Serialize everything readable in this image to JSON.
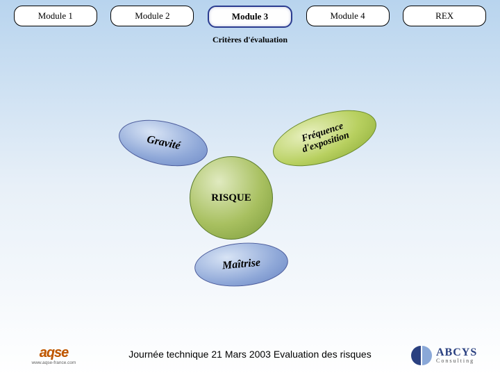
{
  "tabs": {
    "items": [
      {
        "label": "Module 1",
        "active": false
      },
      {
        "label": "Module 2",
        "active": false
      },
      {
        "label": "Module 3",
        "active": true
      },
      {
        "label": "Module 4",
        "active": false
      },
      {
        "label": "REX",
        "active": false
      }
    ]
  },
  "subtitle": "Critères d'évaluation",
  "diagram": {
    "gravite": {
      "label": "Gravité",
      "fill": "#8fa8d8",
      "border": "#4a5a9a",
      "rotation_deg": 12,
      "fontsize": 16
    },
    "freq": {
      "label": "Fréquence\nd'exposition",
      "fill": "#b8d060",
      "border": "#6a8a2a",
      "rotation_deg": -18,
      "fontsize": 14
    },
    "risque": {
      "label": "RISQUE",
      "fill": "#a8c060",
      "border": "#5a7a2a",
      "rotation_deg": 0,
      "fontsize": 15
    },
    "maitrise": {
      "label": "Maîtrise",
      "fill": "#8fa8d8",
      "border": "#4a5a9a",
      "rotation_deg": -5,
      "fontsize": 16
    }
  },
  "footer": {
    "text": "Journée technique 21 Mars 2003 Evaluation des risques"
  },
  "logos": {
    "left": {
      "name": "aqse",
      "subline": "www.aqse-france.com"
    },
    "right": {
      "name": "ABCYS",
      "subline": "Consulting"
    }
  },
  "colors": {
    "bg_top": "#b8d4ee",
    "bg_bottom": "#ffffff",
    "tab_border": "#000000",
    "tab_active_border": "#2a3b8f"
  }
}
